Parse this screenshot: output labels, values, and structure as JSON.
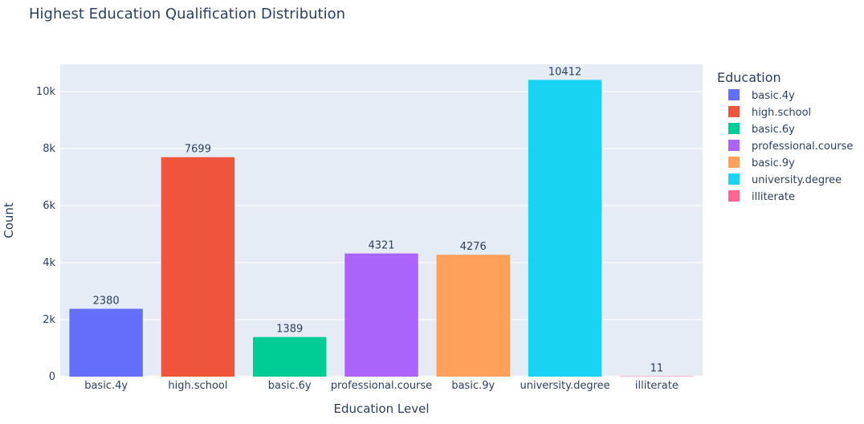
{
  "chart_data": {
    "type": "bar",
    "title": "Highest Education Qualification Distribution",
    "xlabel": "Education Level",
    "ylabel": "Count",
    "ylim": [
      0,
      10960
    ],
    "yticks": [
      0,
      2000,
      4000,
      6000,
      8000,
      10000
    ],
    "ytick_labels": [
      "0",
      "2k",
      "4k",
      "6k",
      "8k",
      "10k"
    ],
    "categories": [
      "basic.4y",
      "high.school",
      "basic.6y",
      "professional.course",
      "basic.9y",
      "university.degree",
      "illiterate"
    ],
    "values": [
      2380,
      7699,
      1389,
      4321,
      4276,
      10412,
      11
    ],
    "data_labels": [
      "2380",
      "7699",
      "1389",
      "4321",
      "4276",
      "10412",
      "11"
    ],
    "colors": [
      "#636efa",
      "#ef553b",
      "#00cc96",
      "#ab63fa",
      "#ffa15a",
      "#19d3f3",
      "#ff6692"
    ],
    "grid": true,
    "legend": {
      "title": "Education",
      "placement": "right",
      "entries": [
        "basic.4y",
        "high.school",
        "basic.6y",
        "professional.course",
        "basic.9y",
        "university.degree",
        "illiterate"
      ]
    },
    "plot_bg": "#e5ecf6"
  }
}
